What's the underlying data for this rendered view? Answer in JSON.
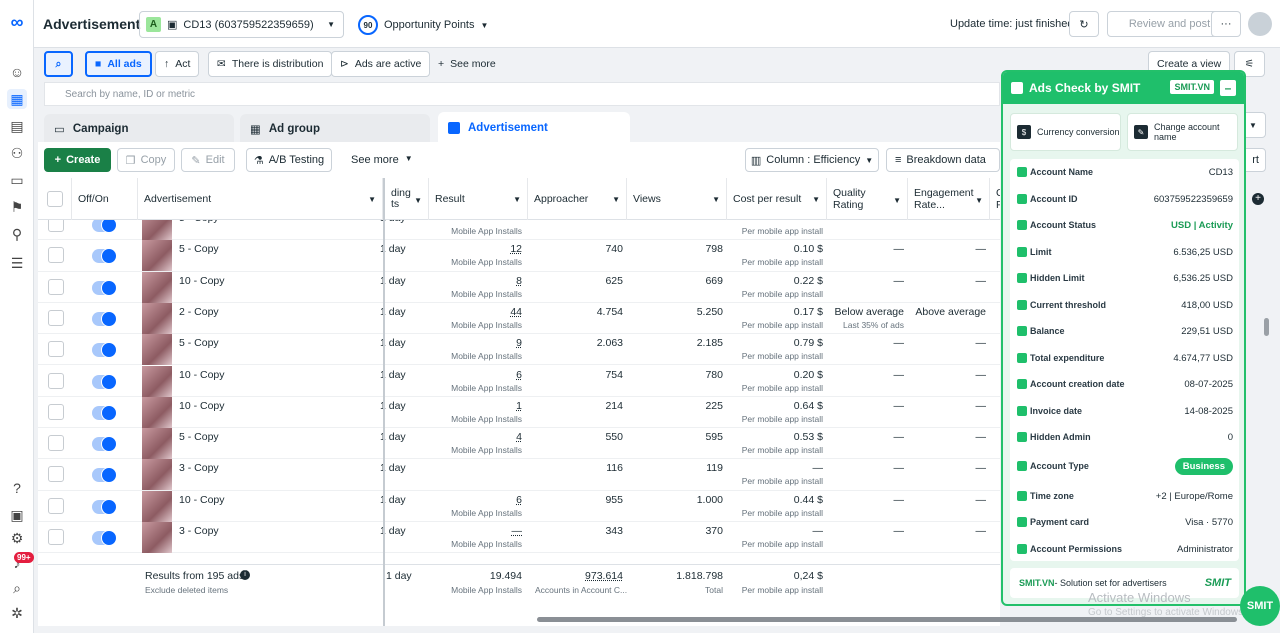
{
  "header": {
    "title": "Advertisement",
    "account_badge": "A",
    "account": "CD13 (603759522359659)",
    "opp_score": "90",
    "opp_label": "Opportunity Points",
    "update": "Update time: just finished",
    "review": "Review and post",
    "more": "···"
  },
  "filters": {
    "all_ads": "All ads",
    "act": "Act",
    "distribution": "There is distribution",
    "active": "Ads are active",
    "see_more": "See more",
    "create_view": "Create a view"
  },
  "search": {
    "placeholder": "Search by name, ID or metric"
  },
  "tabs": {
    "campaign": "Campaign",
    "adgroup": "Ad group",
    "ad": "Advertisement"
  },
  "toolbar": {
    "create": "Create",
    "copy": "Copy",
    "edit": "Edit",
    "ab": "A/B Testing",
    "see_more": "See more",
    "column": "Column : Efficiency",
    "breakdown": "Breakdown data",
    "report": "rt"
  },
  "columns": {
    "onoff": "Off/On",
    "ad": "Advertisement",
    "bidding1": "ding",
    "bidding2": "ts",
    "result": "Result",
    "approacher": "Approacher",
    "views": "Views",
    "cpr": "Cost per result",
    "quality1": "Quality",
    "quality2": "Rating",
    "eng1": "Engagement",
    "eng2": "Rate...",
    "c1": "C",
    "c2": "F"
  },
  "rows": [
    {
      "name": "5 - Copy",
      "sched": "1 day",
      "result": "",
      "result_sub": "Mobile App Installs",
      "reach": "",
      "views": "",
      "cpr": "",
      "cpr_sub": "Per mobile app install",
      "quality": "",
      "eng": ""
    },
    {
      "name": "5 - Copy",
      "sched": "1 day",
      "result": "12",
      "result_sub": "Mobile App Installs",
      "reach": "740",
      "views": "798",
      "cpr": "0.10 $",
      "cpr_sub": "Per mobile app install",
      "quality": "—",
      "eng": "—"
    },
    {
      "name": "10 - Copy",
      "sched": "1 day",
      "result": "8",
      "result_sub": "Mobile App Installs",
      "reach": "625",
      "views": "669",
      "cpr": "0.22 $",
      "cpr_sub": "Per mobile app install",
      "quality": "—",
      "eng": "—"
    },
    {
      "name": "2 - Copy",
      "sched": "1 day",
      "result": "44",
      "result_sub": "Mobile App Installs",
      "reach": "4.754",
      "views": "5.250",
      "cpr": "0.17 $",
      "cpr_sub": "Per mobile app install",
      "quality": "Below average",
      "quality_sub": "Last 35% of ads",
      "eng": "Above average"
    },
    {
      "name": "5 - Copy",
      "sched": "1 day",
      "result": "9",
      "result_sub": "Mobile App Installs",
      "reach": "2.063",
      "views": "2.185",
      "cpr": "0.79 $",
      "cpr_sub": "Per mobile app install",
      "quality": "—",
      "eng": "—"
    },
    {
      "name": "10 - Copy",
      "sched": "1 day",
      "result": "6",
      "result_sub": "Mobile App Installs",
      "reach": "754",
      "views": "780",
      "cpr": "0.20 $",
      "cpr_sub": "Per mobile app install",
      "quality": "—",
      "eng": "—"
    },
    {
      "name": "10 - Copy",
      "sched": "1 day",
      "result": "1",
      "result_sub": "Mobile App Installs",
      "reach": "214",
      "views": "225",
      "cpr": "0.64 $",
      "cpr_sub": "Per mobile app install",
      "quality": "—",
      "eng": "—"
    },
    {
      "name": "5 - Copy",
      "sched": "1 day",
      "result": "4",
      "result_sub": "Mobile App Installs",
      "reach": "550",
      "views": "595",
      "cpr": "0.53 $",
      "cpr_sub": "Per mobile app install",
      "quality": "—",
      "eng": "—"
    },
    {
      "name": "3 - Copy",
      "sched": "1 day",
      "result": "",
      "result_sub": "",
      "reach": "116",
      "views": "119",
      "cpr": "—",
      "cpr_sub": "Per mobile app install",
      "quality": "—",
      "eng": "—"
    },
    {
      "name": "10 - Copy",
      "sched": "1 day",
      "result": "6",
      "result_sub": "Mobile App Installs",
      "reach": "955",
      "views": "1.000",
      "cpr": "0.44 $",
      "cpr_sub": "Per mobile app install",
      "quality": "—",
      "eng": "—"
    },
    {
      "name": "3 - Copy",
      "sched": "1 day",
      "result": "—",
      "result_sub": "Mobile App Installs",
      "reach": "343",
      "views": "370",
      "cpr": "—",
      "cpr_sub": "Per mobile app install",
      "quality": "—",
      "eng": "—"
    }
  ],
  "footer": {
    "results": "Results from 195 ads",
    "excl": "Exclude deleted items",
    "sched": "1 day",
    "result": "19.494",
    "result_sub": "Mobile App Installs",
    "reach": "973.614",
    "reach_sub": "Accounts in Account C...",
    "views": "1.818.798",
    "views_sub": "Total",
    "cpr": "0,24 $",
    "cpr_sub": "Per mobile app install"
  },
  "smit": {
    "title": "Ads Check by SMIT",
    "tag": "SMIT.VN",
    "min": "–",
    "currency": "Currency conversion",
    "change": "Change account name",
    "items": [
      {
        "label": "Account Name",
        "value": "CD13"
      },
      {
        "label": "Account ID",
        "value": "603759522359659"
      },
      {
        "label": "Account Status",
        "value": "USD | Activity"
      },
      {
        "label": "Limit",
        "value": "6.536,25 USD"
      },
      {
        "label": "Hidden Limit",
        "value": "6,536.25 USD"
      },
      {
        "label": "Current threshold",
        "value": "418,00 USD"
      },
      {
        "label": "Balance",
        "value": "229,51 USD"
      },
      {
        "label": "Total expenditure",
        "value": "4.674,77 USD"
      },
      {
        "label": "Account creation date",
        "value": "08-07-2025"
      },
      {
        "label": "Invoice date",
        "value": "14-08-2025"
      },
      {
        "label": "Hidden Admin",
        "value": "0"
      },
      {
        "label": "Account Type",
        "value": "Business"
      },
      {
        "label": "Time zone",
        "value": "+2 | Europe/Rome"
      },
      {
        "label": "Payment card",
        "value": "Visa · 5770"
      },
      {
        "label": "Account Permissions",
        "value": "Administrator"
      }
    ],
    "footer": "SMIT.VN",
    "footer_text": " - Solution set for advertisers",
    "footer_logo": "SMIT"
  },
  "watermark": {
    "line1": "Activate Windows",
    "line2": "Go to Settings to activate Windows."
  },
  "fab": "SMIT",
  "notif": "99+",
  "colors": {
    "accent": "#0866ff",
    "create": "#1a8047",
    "smit": "#1fbf6b"
  }
}
